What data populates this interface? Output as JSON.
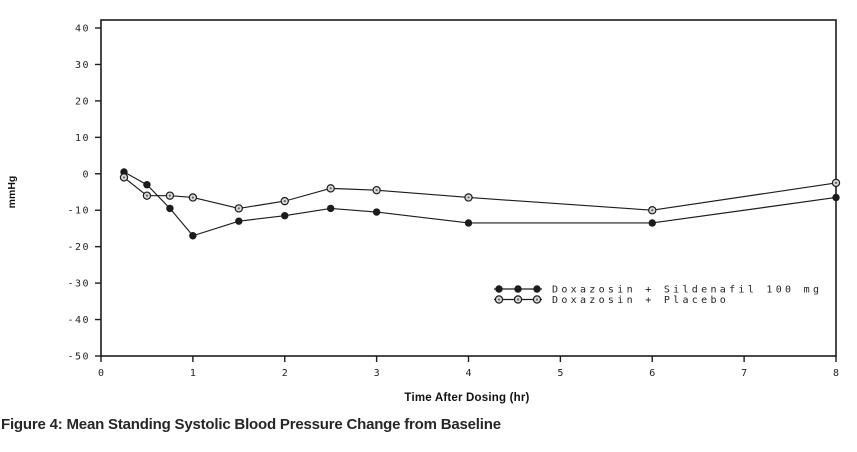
{
  "figure": {
    "caption": "Figure 4: Mean Standing Systolic Blood Pressure Change from Baseline"
  },
  "chart_data": {
    "type": "line",
    "title": "",
    "xlabel": "Time After Dosing (hr)",
    "ylabel": "mmHg",
    "xlim": [
      0,
      8
    ],
    "ylim": [
      -50,
      40
    ],
    "x_ticks": [
      0,
      1,
      2,
      3,
      4,
      5,
      6,
      7,
      8
    ],
    "y_ticks": [
      40,
      30,
      20,
      10,
      0,
      -10,
      -20,
      -30,
      -40,
      -50
    ],
    "grid": false,
    "legend_position": "inside-bottom-right",
    "x": [
      0.25,
      0.5,
      0.75,
      1,
      1.5,
      2,
      2.5,
      3,
      4,
      6,
      8
    ],
    "series": [
      {
        "name": "Doxazosin + Sildenafil 100 mg",
        "marker": "filled-circle",
        "values": [
          0.5,
          -3,
          -9.5,
          -17,
          -13,
          -11.5,
          -9.5,
          -10.5,
          -13.5,
          -13.5,
          -6.5
        ]
      },
      {
        "name": "Doxazosin + Placebo",
        "marker": "open-circle",
        "values": [
          -1,
          -6,
          -6,
          -6.5,
          -9.5,
          -7.5,
          -4,
          -4.5,
          -6.5,
          -10,
          -2.5
        ]
      }
    ]
  },
  "colors": {
    "line": "#1c1c1c",
    "text": "#1f1f1f",
    "open_marker_fill": "#d9d9d9",
    "background": "#ffffff"
  }
}
